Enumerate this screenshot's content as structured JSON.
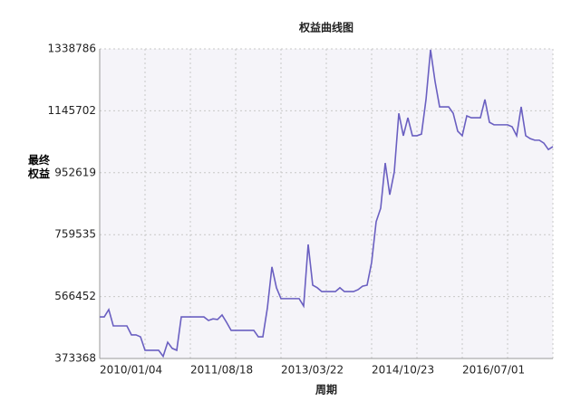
{
  "chart_data": {
    "type": "line",
    "title": "权益曲线图",
    "x_label": "周期",
    "y_label": "最终权益",
    "categories": [
      "2010/01/04",
      null,
      null,
      null,
      null,
      null,
      null,
      null,
      null,
      null,
      null,
      null,
      null,
      null,
      null,
      null,
      null,
      null,
      null,
      null,
      "2011/08/18",
      null,
      null,
      null,
      null,
      null,
      null,
      null,
      null,
      null,
      null,
      null,
      null,
      null,
      null,
      null,
      null,
      null,
      null,
      null,
      "2013/03/22",
      null,
      null,
      null,
      null,
      null,
      null,
      null,
      null,
      null,
      null,
      null,
      null,
      null,
      null,
      null,
      null,
      null,
      null,
      null,
      "2014/10/23",
      null,
      null,
      null,
      null,
      null,
      null,
      null,
      null,
      null,
      null,
      null,
      null,
      null,
      null,
      null,
      null,
      null,
      null,
      null,
      "2016/07/01",
      null,
      null,
      null,
      null,
      null,
      null,
      null,
      null,
      null,
      null,
      null,
      null,
      null,
      null,
      null,
      null,
      null,
      null,
      null,
      null
    ],
    "series": [
      {
        "color": "#6a5fc1",
        "values": [
          503000,
          503000,
          526000,
          475000,
          475000,
          475000,
          475000,
          447000,
          447000,
          441000,
          399000,
          399000,
          399000,
          399000,
          380000,
          424000,
          405000,
          399000,
          503000,
          503000,
          503000,
          503000,
          503000,
          503000,
          492000,
          497000,
          495000,
          509000,
          486000,
          461000,
          461000,
          461000,
          461000,
          461000,
          461000,
          441000,
          441000,
          531000,
          659000,
          594000,
          560000,
          560000,
          560000,
          560000,
          560000,
          537000,
          729000,
          602000,
          594000,
          582000,
          582000,
          582000,
          582000,
          594000,
          582000,
          582000,
          582000,
          588000,
          599000,
          602000,
          673000,
          800000,
          842000,
          983000,
          884000,
          955000,
          1138000,
          1068000,
          1124000,
          1068000,
          1068000,
          1073000,
          1181000,
          1336000,
          1237000,
          1158000,
          1158000,
          1158000,
          1138000,
          1082000,
          1068000,
          1130000,
          1124000,
          1124000,
          1124000,
          1181000,
          1110000,
          1102000,
          1102000,
          1102000,
          1102000,
          1096000,
          1068000,
          1158000,
          1068000,
          1059000,
          1054000,
          1054000,
          1045000,
          1025000,
          1034000
        ]
      }
    ],
    "ylim": [
      373368,
      1338786
    ],
    "yticks": [
      373368,
      566452,
      759535,
      952619,
      1145702,
      1338786
    ],
    "grid": true
  }
}
